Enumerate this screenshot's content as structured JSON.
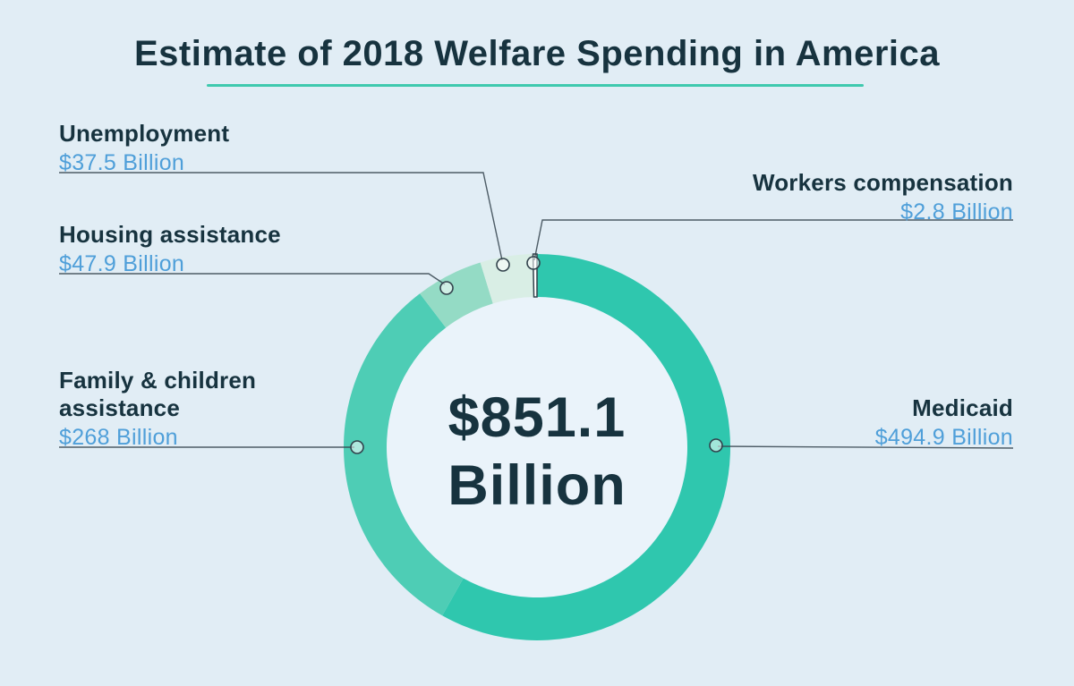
{
  "title": "Estimate of 2018 Welfare Spending in America",
  "center_label": {
    "value": "$851.1",
    "unit": "Billion"
  },
  "chart_data": {
    "type": "pie",
    "subtype": "donut",
    "title": "Estimate of 2018 Welfare Spending in America",
    "units": "USD billions",
    "total": {
      "value": 851.1,
      "label": "$851.1 Billion"
    },
    "start_angle_deg": 0,
    "direction": "clockwise",
    "segments": [
      {
        "label": "Medicaid",
        "value": 494.9,
        "value_label": "$494.9 Billion",
        "color": "#2fc7ae"
      },
      {
        "label": "Family & children assistance",
        "value": 268,
        "value_label": "$268 Billion",
        "color": "#4ecdb5"
      },
      {
        "label": "Housing assistance",
        "value": 47.9,
        "value_label": "$47.9 Billion",
        "color": "#94dbc5"
      },
      {
        "label": "Unemployment",
        "value": 37.5,
        "value_label": "$37.5 Billion",
        "color": "#d9eee5"
      },
      {
        "label": "Workers compensation",
        "value": 2.8,
        "value_label": "$2.8 Billion",
        "color": "#ffffff"
      }
    ]
  },
  "colors": {
    "background": "#e1edf5",
    "inner_disc": "#eaf3fa",
    "title_text": "#17333f",
    "value_text": "#4f9fd9",
    "title_underline": "#3fc9ae",
    "leader_line": "#32424c"
  }
}
